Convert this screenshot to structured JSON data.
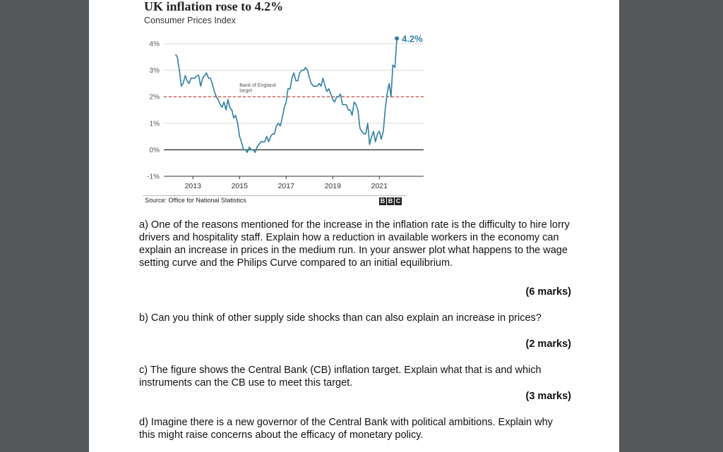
{
  "chart_data": {
    "type": "line",
    "title": "UK inflation rose to 4.2%",
    "subtitle": "Consumer Prices Index",
    "xlabel": "",
    "ylabel": "",
    "xlim": [
      2011.75,
      2022.9
    ],
    "ylim": [
      -1,
      4
    ],
    "y_ticks": [
      4,
      3,
      2,
      1,
      0,
      -1
    ],
    "y_tick_labels": [
      "4%",
      "3%",
      "2%",
      "1%",
      "0%",
      "-1%"
    ],
    "x_ticks": [
      2013,
      2015,
      2017,
      2019,
      2021
    ],
    "x_tick_labels": [
      "2013",
      "2015",
      "2017",
      "2019",
      "2021"
    ],
    "grid": true,
    "series": [
      {
        "name": "",
        "color": "#2f7fa3",
        "x": [
          2012.25,
          2012.33,
          2012.42,
          2012.5,
          2012.58,
          2012.67,
          2012.75,
          2012.83,
          2012.92,
          2013.0,
          2013.08,
          2013.17,
          2013.25,
          2013.33,
          2013.42,
          2013.5,
          2013.58,
          2013.67,
          2013.75,
          2013.83,
          2013.92,
          2014.0,
          2014.08,
          2014.17,
          2014.25,
          2014.33,
          2014.42,
          2014.5,
          2014.58,
          2014.67,
          2014.75,
          2014.83,
          2014.92,
          2015.0,
          2015.08,
          2015.17,
          2015.25,
          2015.33,
          2015.42,
          2015.5,
          2015.58,
          2015.67,
          2015.75,
          2015.83,
          2015.92,
          2016.0,
          2016.08,
          2016.17,
          2016.25,
          2016.33,
          2016.42,
          2016.5,
          2016.58,
          2016.67,
          2016.75,
          2016.83,
          2016.92,
          2017.0,
          2017.08,
          2017.17,
          2017.25,
          2017.33,
          2017.42,
          2017.5,
          2017.58,
          2017.67,
          2017.75,
          2017.83,
          2017.92,
          2018.0,
          2018.08,
          2018.17,
          2018.25,
          2018.33,
          2018.42,
          2018.5,
          2018.58,
          2018.67,
          2018.75,
          2018.83,
          2018.92,
          2019.0,
          2019.08,
          2019.17,
          2019.25,
          2019.33,
          2019.42,
          2019.5,
          2019.58,
          2019.67,
          2019.75,
          2019.83,
          2019.92,
          2020.0,
          2020.08,
          2020.17,
          2020.25,
          2020.33,
          2020.42,
          2020.5,
          2020.58,
          2020.67,
          2020.75,
          2020.83,
          2020.92,
          2021.0,
          2021.08,
          2021.17,
          2021.25,
          2021.33,
          2021.42,
          2021.5,
          2021.58,
          2021.67,
          2021.75
        ],
        "values": [
          3.6,
          3.5,
          3.0,
          2.4,
          2.5,
          2.8,
          2.6,
          2.5,
          2.7,
          2.7,
          2.7,
          2.8,
          2.8,
          2.4,
          2.7,
          2.8,
          2.9,
          2.7,
          2.7,
          2.5,
          2.2,
          2.0,
          1.9,
          1.7,
          1.6,
          1.8,
          1.5,
          1.9,
          1.6,
          1.5,
          1.2,
          1.3,
          1.0,
          0.5,
          0.3,
          0.0,
          0.0,
          -0.1,
          0.1,
          0.0,
          0.0,
          -0.1,
          0.1,
          0.2,
          0.3,
          0.3,
          0.3,
          0.5,
          0.3,
          0.5,
          0.6,
          0.6,
          0.9,
          1.0,
          0.9,
          1.2,
          1.6,
          1.8,
          2.3,
          2.3,
          2.7,
          2.9,
          2.6,
          2.6,
          2.9,
          3.0,
          3.0,
          3.1,
          3.0,
          2.7,
          2.5,
          2.4,
          2.4,
          2.4,
          2.5,
          2.4,
          2.7,
          2.4,
          2.2,
          2.3,
          2.1,
          1.9,
          1.8,
          2.0,
          2.0,
          2.1,
          1.7,
          1.7,
          1.7,
          1.5,
          1.5,
          1.3,
          1.8,
          1.7,
          1.5,
          0.8,
          0.7,
          0.6,
          0.6,
          1.0,
          0.2,
          0.5,
          0.7,
          0.3,
          0.6,
          0.7,
          0.4,
          0.7,
          1.5,
          2.1,
          2.5,
          2.0,
          3.2,
          3.1,
          4.2
        ]
      }
    ],
    "target": {
      "value": 2,
      "label_line1": "Bank of England",
      "label_line2": "target",
      "color": "#c0392b"
    },
    "end_label": "4.2%"
  },
  "source": "Source: Office for National Statistics",
  "logo_letters": [
    "B",
    "B",
    "C"
  ],
  "questions": {
    "a": "a) One of the reasons mentioned for the increase in the inflation rate is the difficulty to hire lorry drivers and hospitality staff. Explain how a reduction in available workers in the economy can explain an increase in prices in the medium run. In your answer plot what happens to the wage setting curve and the Philips Curve compared to an initial equilibrium.",
    "a_marks": "(6 marks)",
    "b": "b) Can you think of other supply side shocks than can also explain an increase in prices?",
    "b_marks": "(2 marks)",
    "c": "c) The figure shows the Central Bank (CB) inflation target. Explain what that is and which instruments can the CB use to meet this target.",
    "c_marks": "(3 marks)",
    "d": "d) Imagine there is a new governor of the Central Bank with political ambitions. Explain why this might raise concerns about the efficacy of monetary policy."
  }
}
